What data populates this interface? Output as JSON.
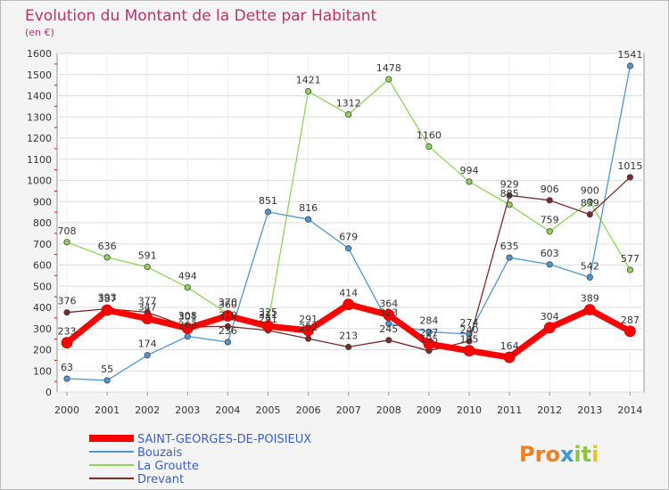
{
  "chart_data": {
    "type": "line",
    "title": "Evolution du Montant de la Dette par Habitant",
    "subtitle": "(en €)",
    "xlabel": "",
    "ylabel": "",
    "ylim": [
      0,
      1600
    ],
    "y_ticks": [
      0,
      100,
      200,
      300,
      400,
      500,
      600,
      700,
      800,
      900,
      1000,
      1100,
      1200,
      1300,
      1400,
      1500,
      1600
    ],
    "x": [
      "2000",
      "2001",
      "2002",
      "2003",
      "2004",
      "2005",
      "2006",
      "2007",
      "2008",
      "2009",
      "2010",
      "2011",
      "2012",
      "2013",
      "2014"
    ],
    "grid": true,
    "legend_position": "bottom-left",
    "series": [
      {
        "name": "SAINT-GEORGES-DE-POISIEUX",
        "color": "#ff0000",
        "highlight": true,
        "values": [
          233,
          387,
          347,
          301,
          360,
          311,
          291,
          414,
          364,
          227,
          195,
          164,
          304,
          389,
          287
        ]
      },
      {
        "name": "Bouzais",
        "color": "#4f96d0",
        "values": [
          63,
          55,
          174,
          263,
          236,
          851,
          816,
          679,
          323,
          284,
          274,
          635,
          603,
          542,
          1541
        ]
      },
      {
        "name": "La Groutte",
        "color": "#8fd45a",
        "values": [
          708,
          636,
          591,
          494,
          370,
          325,
          1421,
          1312,
          1478,
          1160,
          994,
          885,
          759,
          900,
          577
        ]
      },
      {
        "name": "Drevant",
        "color": "#7a2a2a",
        "values": [
          376,
          393,
          377,
          308,
          310,
          291,
          252,
          213,
          245,
          195,
          240,
          929,
          906,
          839,
          1015
        ]
      }
    ]
  },
  "brand": {
    "logo_text": "Proxiti"
  }
}
